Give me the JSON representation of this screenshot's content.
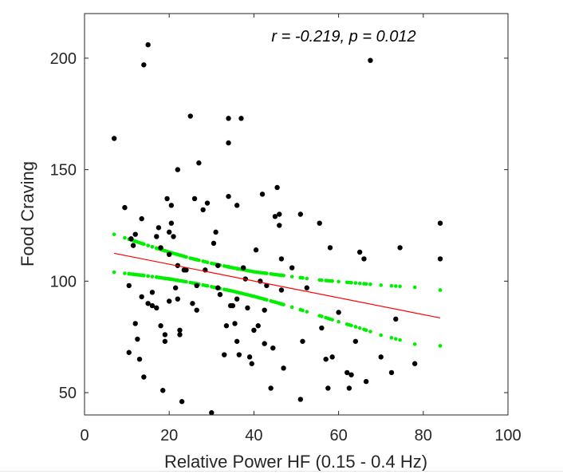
{
  "chart_data": {
    "type": "scatter",
    "title": "",
    "xlabel": "Relative Power HF (0.15 - 0.4 Hz)",
    "ylabel": "Food Craving",
    "annotation": "r = -0.219, p = 0.012",
    "xlim": [
      0,
      100
    ],
    "ylim": [
      40,
      220
    ],
    "x_ticks": [
      0,
      20,
      40,
      60,
      80,
      100
    ],
    "y_ticks": [
      50,
      100,
      150,
      200
    ],
    "grid": false,
    "colors": {
      "points": "#000000",
      "fit": "#ff0000",
      "ci": "#00ee00",
      "axes": "#262626"
    },
    "points": [
      [
        7,
        164
      ],
      [
        9.5,
        133
      ],
      [
        10.5,
        68
      ],
      [
        10.5,
        98
      ],
      [
        11,
        119
      ],
      [
        11.5,
        116
      ],
      [
        12,
        81
      ],
      [
        12,
        121
      ],
      [
        12.5,
        74
      ],
      [
        13,
        65
      ],
      [
        13.5,
        128
      ],
      [
        13.5,
        93
      ],
      [
        14,
        57
      ],
      [
        14,
        197
      ],
      [
        15,
        206
      ],
      [
        15,
        90
      ],
      [
        16,
        89
      ],
      [
        16,
        95
      ],
      [
        17,
        88
      ],
      [
        17,
        120
      ],
      [
        17.5,
        124
      ],
      [
        18,
        80
      ],
      [
        18,
        115
      ],
      [
        18.5,
        51
      ],
      [
        19,
        76
      ],
      [
        19,
        73
      ],
      [
        19.5,
        137
      ],
      [
        20,
        112
      ],
      [
        20,
        91
      ],
      [
        20,
        122
      ],
      [
        20.5,
        126
      ],
      [
        20.5,
        134
      ],
      [
        21,
        120
      ],
      [
        21.5,
        97
      ],
      [
        22,
        150
      ],
      [
        22,
        107
      ],
      [
        22,
        92
      ],
      [
        22.5,
        76
      ],
      [
        22.5,
        78
      ],
      [
        23,
        46
      ],
      [
        23.5,
        105
      ],
      [
        24,
        105
      ],
      [
        25,
        174
      ],
      [
        25.5,
        90
      ],
      [
        26,
        137
      ],
      [
        26.5,
        98
      ],
      [
        26.5,
        87
      ],
      [
        27,
        153
      ],
      [
        28,
        132
      ],
      [
        28.5,
        105
      ],
      [
        29,
        135
      ],
      [
        30,
        41
      ],
      [
        30.5,
        117
      ],
      [
        31,
        122
      ],
      [
        31.5,
        107
      ],
      [
        31.5,
        97
      ],
      [
        32,
        94
      ],
      [
        33,
        67
      ],
      [
        33.5,
        80
      ],
      [
        34,
        162
      ],
      [
        34,
        138
      ],
      [
        34,
        173
      ],
      [
        34.5,
        89
      ],
      [
        35,
        89
      ],
      [
        35.5,
        81
      ],
      [
        36,
        73
      ],
      [
        36,
        134
      ],
      [
        36,
        92
      ],
      [
        36.5,
        67
      ],
      [
        37,
        173
      ],
      [
        37.5,
        106
      ],
      [
        38,
        101
      ],
      [
        38.5,
        88
      ],
      [
        39,
        66
      ],
      [
        39.5,
        63
      ],
      [
        40,
        78
      ],
      [
        40.5,
        114
      ],
      [
        41,
        80
      ],
      [
        41.5,
        100
      ],
      [
        42,
        139
      ],
      [
        42.5,
        72
      ],
      [
        42.5,
        87
      ],
      [
        43,
        98
      ],
      [
        44,
        52
      ],
      [
        44.5,
        70
      ],
      [
        45,
        129
      ],
      [
        45.5,
        142
      ],
      [
        46,
        125
      ],
      [
        46,
        130
      ],
      [
        46.5,
        96
      ],
      [
        46.5,
        110
      ],
      [
        47,
        61
      ],
      [
        49,
        106
      ],
      [
        51,
        47
      ],
      [
        51,
        130
      ],
      [
        51.5,
        73
      ],
      [
        52.5,
        97
      ],
      [
        55.5,
        126
      ],
      [
        56,
        79
      ],
      [
        57,
        65
      ],
      [
        57.5,
        52
      ],
      [
        58,
        115
      ],
      [
        58.5,
        66
      ],
      [
        60,
        86
      ],
      [
        62,
        59
      ],
      [
        62.5,
        52
      ],
      [
        63,
        58
      ],
      [
        64,
        73
      ],
      [
        65,
        113
      ],
      [
        66,
        110
      ],
      [
        66.5,
        55
      ],
      [
        67.5,
        199
      ],
      [
        70,
        66
      ],
      [
        72.5,
        59
      ],
      [
        73.5,
        83
      ],
      [
        74.5,
        115
      ],
      [
        78,
        63
      ],
      [
        84,
        126
      ],
      [
        84,
        110
      ]
    ],
    "fit_line": {
      "x": [
        7,
        84
      ],
      "y": [
        112.5,
        83.5
      ]
    },
    "ci_upper": {
      "x": [
        7,
        10.5,
        15,
        20,
        25,
        30,
        35,
        40,
        45,
        50,
        55,
        60,
        65,
        70,
        75,
        80,
        84
      ],
      "y": [
        121,
        118.8,
        116,
        113,
        110.3,
        108,
        106,
        104.2,
        103,
        101.8,
        100.6,
        99.8,
        99,
        98.2,
        97.6,
        97,
        96
      ]
    },
    "ci_lower": {
      "x": [
        7,
        10.5,
        15,
        20,
        25,
        30,
        35,
        40,
        45,
        50,
        55,
        60,
        65,
        70,
        75,
        80,
        84
      ],
      "y": [
        104,
        103.3,
        102.3,
        101,
        99.4,
        97.5,
        95.5,
        93.2,
        90.6,
        87.8,
        84.8,
        81.8,
        79,
        75.8,
        73.4,
        70.6,
        71
      ]
    }
  }
}
